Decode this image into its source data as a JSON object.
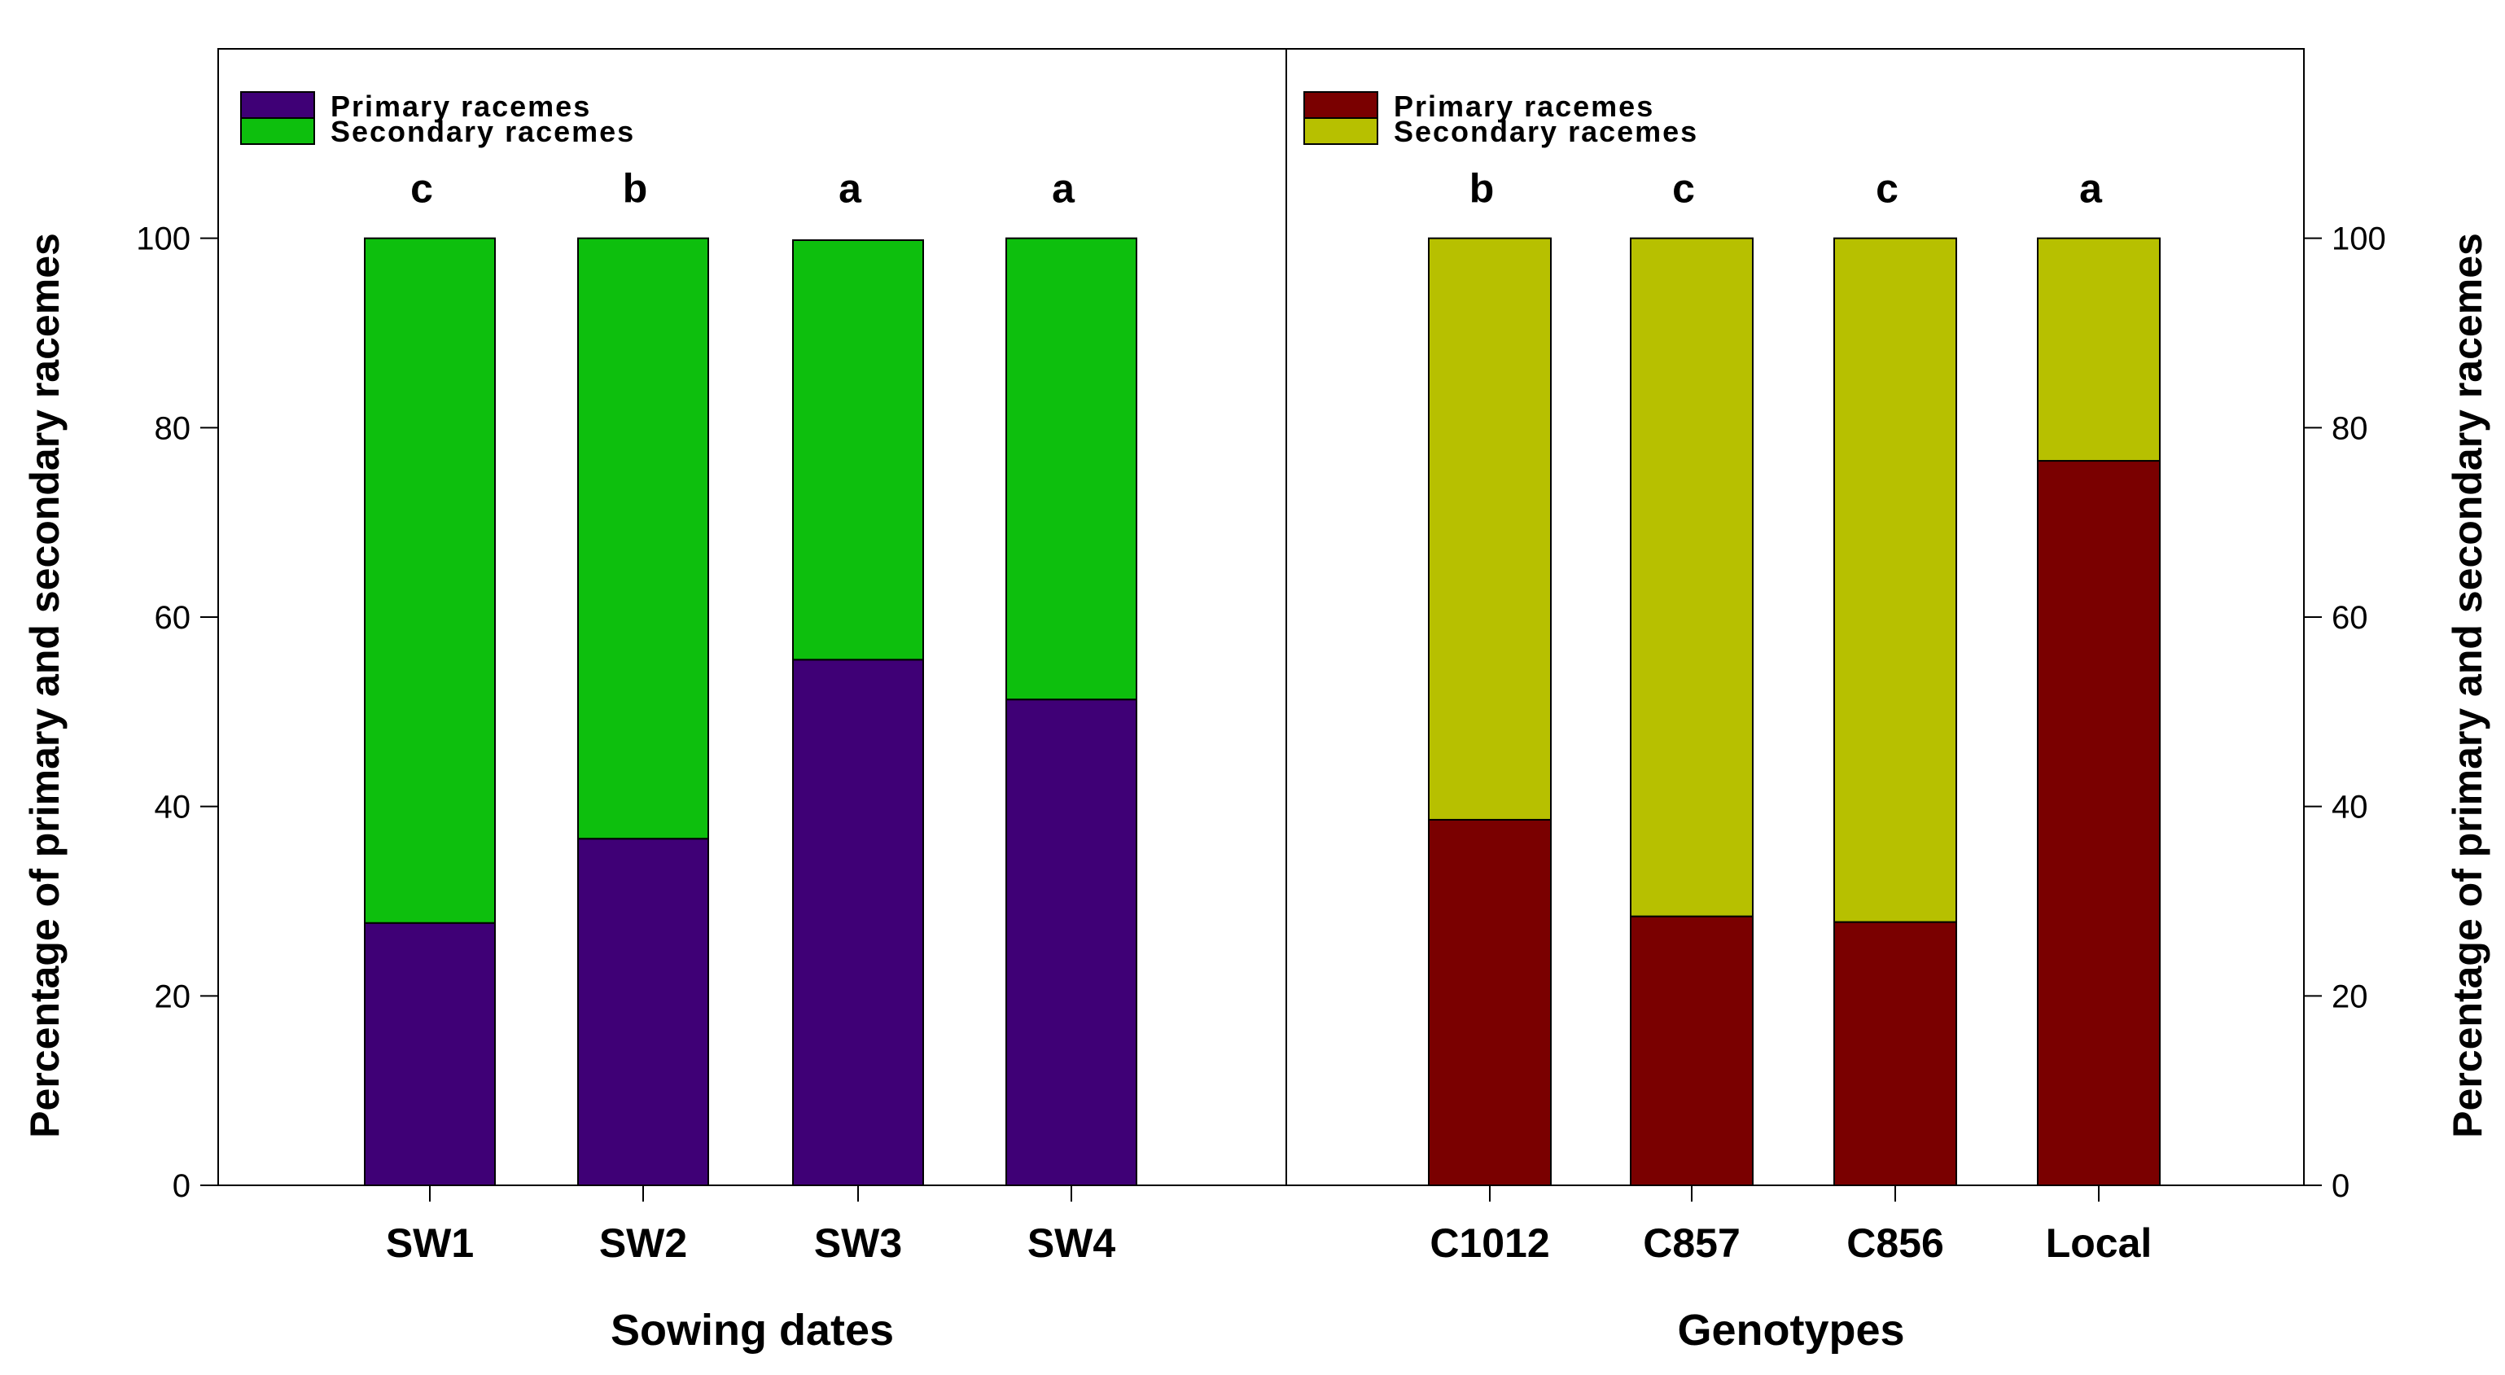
{
  "chart_data": [
    {
      "type": "bar",
      "stacked": true,
      "title": "",
      "xlabel": "Sowing dates",
      "ylabel": "Percentage of primary and secondary racemes",
      "ylim": [
        0,
        120
      ],
      "yticks": [
        0,
        20,
        40,
        60,
        80,
        100
      ],
      "y_axis_side": "left",
      "categories": [
        "SW1",
        "SW2",
        "SW3",
        "SW4"
      ],
      "significance_letters": [
        "c",
        "b",
        "a",
        "a"
      ],
      "series": [
        {
          "name": "Primary racemes",
          "color": "#3f0076",
          "values": [
            27.7,
            36.6,
            55.5,
            51.3
          ]
        },
        {
          "name": "Secondary racemes",
          "color": "#0dbf0d",
          "values": [
            72.3,
            63.4,
            44.3,
            48.7
          ]
        }
      ],
      "legend": "top-left"
    },
    {
      "type": "bar",
      "stacked": true,
      "title": "",
      "xlabel": "Genotypes",
      "ylabel": "Percentage of primary and secondary racemes",
      "ylim": [
        0,
        120
      ],
      "yticks": [
        0,
        20,
        40,
        60,
        80,
        100
      ],
      "y_axis_side": "right",
      "categories": [
        "C1012",
        "C857",
        "C856",
        "Local"
      ],
      "significance_letters": [
        "b",
        "c",
        "c",
        "a"
      ],
      "series": [
        {
          "name": "Primary racemes",
          "color": "#7a0000",
          "values": [
            38.6,
            28.4,
            27.8,
            76.5
          ]
        },
        {
          "name": "Secondary racemes",
          "color": "#b7c000",
          "values": [
            61.4,
            71.6,
            72.2,
            23.5
          ]
        }
      ],
      "legend": "top-left"
    }
  ]
}
